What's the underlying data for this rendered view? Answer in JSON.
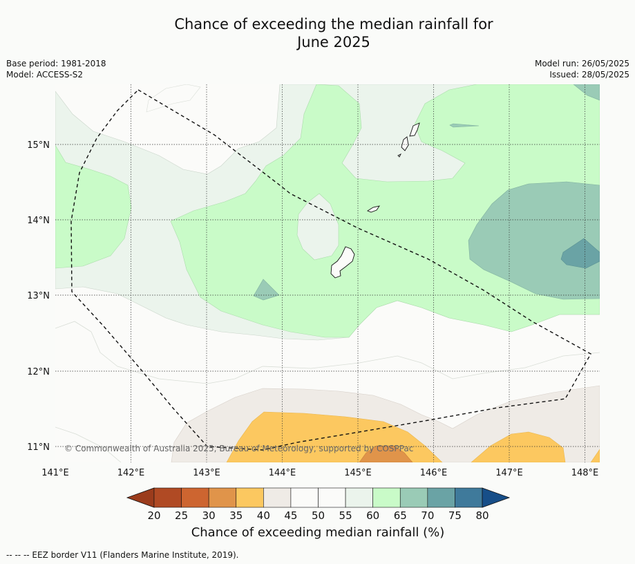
{
  "title_line1": "Chance of exceeding the median rainfall for",
  "title_line2": "June 2025",
  "base_period": "Base period: 1981-2018",
  "model": "Model: ACCESS-S2",
  "model_run": "Model run: 26/05/2025",
  "issued": "Issued: 28/05/2025",
  "copyright": "© Commonwealth of Australia 2025, Bureau of Meteorology, supported by COSPPac",
  "lon_labels": [
    "141°E",
    "142°E",
    "143°E",
    "144°E",
    "145°E",
    "146°E",
    "147°E",
    "148°E"
  ],
  "lat_labels": [
    "15°N",
    "14°N",
    "13°N",
    "12°N",
    "11°N"
  ],
  "colorbar": {
    "ticks": [
      "20",
      "25",
      "30",
      "35",
      "40",
      "45",
      "50",
      "55",
      "60",
      "65",
      "70",
      "75",
      "80"
    ],
    "colors": [
      "#b04a24",
      "#cd6530",
      "#e0944a",
      "#fcc860",
      "#efebe6",
      "#fbfbf9",
      "#fbfbf9",
      "#ebf4ec",
      "#c9fbc8",
      "#9acbb6",
      "#6aa3a5",
      "#3f7a9b"
    ],
    "under_color": "#9b3c1c",
    "over_color": "#174e88",
    "label": "Chance of exceeding median rainfall (%)"
  },
  "footnote": "--  --  -- EEZ border V11 (Flanders Marine Institute, 2019).",
  "map_style": {
    "ocean": "#fbfbf9",
    "band_40_45": "#efebe6",
    "band_35_40": "#fcc860",
    "band_30_35": "#e0944a",
    "band_55_60": "#ebf4ec",
    "band_60_65": "#c9fbc8",
    "band_65_70": "#9acbb6",
    "band_70_75": "#6aa3a5",
    "graticule": "dotted",
    "eez_line": "dashed"
  }
}
